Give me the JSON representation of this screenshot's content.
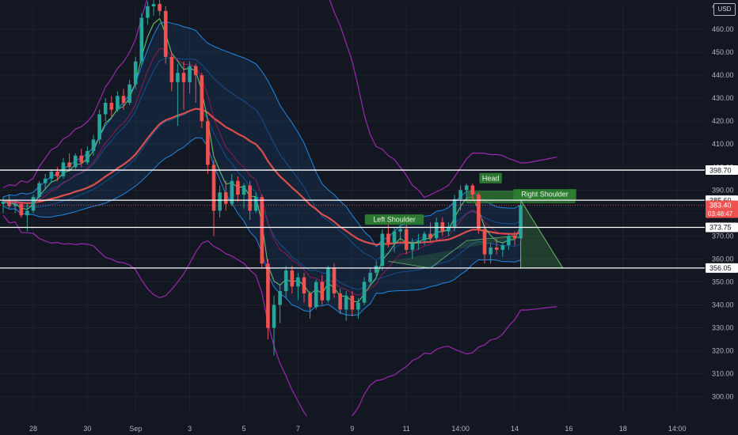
{
  "currency": "USD",
  "chart_data": {
    "type": "candlestick",
    "y_range": [
      293,
      470
    ],
    "y_ticks": [
      "300.00",
      "310.00",
      "320.00",
      "330.00",
      "340.00",
      "350.00",
      "360.00",
      "370.00",
      "380.00",
      "390.00",
      "400.00",
      "410.00",
      "420.00",
      "430.00",
      "440.00",
      "450.00",
      "460.00",
      "470.00"
    ],
    "y_tick_values": [
      300,
      310,
      320,
      330,
      340,
      350,
      360,
      370,
      380,
      390,
      400,
      410,
      420,
      430,
      440,
      450,
      460,
      470
    ],
    "x_ticks": [
      {
        "label": "28",
        "index": 5
      },
      {
        "label": "30",
        "index": 14
      },
      {
        "label": "Sep",
        "index": 22
      },
      {
        "label": "3",
        "index": 31
      },
      {
        "label": "5",
        "index": 40
      },
      {
        "label": "7",
        "index": 49
      },
      {
        "label": "9",
        "index": 58
      },
      {
        "label": "11",
        "index": 67
      },
      {
        "label": "14:00",
        "index": 76
      },
      {
        "label": "14",
        "index": 85
      },
      {
        "label": "16",
        "index": 94
      },
      {
        "label": "18",
        "index": 103
      },
      {
        "label": "14:00",
        "index": 112
      }
    ],
    "candles": [
      {
        "o": 384,
        "h": 387,
        "l": 380,
        "c": 385
      },
      {
        "o": 385,
        "h": 388,
        "l": 382,
        "c": 383
      },
      {
        "o": 383,
        "h": 386,
        "l": 380,
        "c": 384
      },
      {
        "o": 384,
        "h": 385,
        "l": 378,
        "c": 379
      },
      {
        "o": 379,
        "h": 384,
        "l": 372,
        "c": 381
      },
      {
        "o": 381,
        "h": 388,
        "l": 380,
        "c": 387
      },
      {
        "o": 387,
        "h": 394,
        "l": 386,
        "c": 393
      },
      {
        "o": 393,
        "h": 397,
        "l": 390,
        "c": 395
      },
      {
        "o": 395,
        "h": 399,
        "l": 393,
        "c": 398
      },
      {
        "o": 398,
        "h": 400,
        "l": 394,
        "c": 396
      },
      {
        "o": 396,
        "h": 404,
        "l": 395,
        "c": 402
      },
      {
        "o": 402,
        "h": 406,
        "l": 398,
        "c": 400
      },
      {
        "o": 400,
        "h": 406,
        "l": 399,
        "c": 405
      },
      {
        "o": 405,
        "h": 408,
        "l": 400,
        "c": 402
      },
      {
        "o": 402,
        "h": 409,
        "l": 401,
        "c": 407
      },
      {
        "o": 407,
        "h": 414,
        "l": 405,
        "c": 412
      },
      {
        "o": 412,
        "h": 425,
        "l": 410,
        "c": 423
      },
      {
        "o": 423,
        "h": 430,
        "l": 420,
        "c": 428
      },
      {
        "o": 428,
        "h": 431,
        "l": 422,
        "c": 425
      },
      {
        "o": 425,
        "h": 433,
        "l": 424,
        "c": 431
      },
      {
        "o": 431,
        "h": 434,
        "l": 425,
        "c": 428
      },
      {
        "o": 428,
        "h": 438,
        "l": 427,
        "c": 436
      },
      {
        "o": 436,
        "h": 448,
        "l": 434,
        "c": 446
      },
      {
        "o": 446,
        "h": 467,
        "l": 444,
        "c": 465
      },
      {
        "o": 465,
        "h": 472,
        "l": 462,
        "c": 470
      },
      {
        "o": 470,
        "h": 474,
        "l": 466,
        "c": 471
      },
      {
        "o": 471,
        "h": 473,
        "l": 466,
        "c": 468
      },
      {
        "o": 468,
        "h": 470,
        "l": 445,
        "c": 448
      },
      {
        "o": 448,
        "h": 450,
        "l": 433,
        "c": 437
      },
      {
        "o": 437,
        "h": 445,
        "l": 418,
        "c": 441
      },
      {
        "o": 441,
        "h": 446,
        "l": 425,
        "c": 437
      },
      {
        "o": 437,
        "h": 446,
        "l": 432,
        "c": 444
      },
      {
        "o": 444,
        "h": 445,
        "l": 428,
        "c": 440
      },
      {
        "o": 440,
        "h": 441,
        "l": 417,
        "c": 420
      },
      {
        "o": 420,
        "h": 421,
        "l": 397,
        "c": 401
      },
      {
        "o": 401,
        "h": 403,
        "l": 370,
        "c": 381
      },
      {
        "o": 381,
        "h": 392,
        "l": 378,
        "c": 389
      },
      {
        "o": 389,
        "h": 394,
        "l": 381,
        "c": 384
      },
      {
        "o": 384,
        "h": 397,
        "l": 383,
        "c": 394
      },
      {
        "o": 394,
        "h": 396,
        "l": 385,
        "c": 388
      },
      {
        "o": 388,
        "h": 393,
        "l": 382,
        "c": 392
      },
      {
        "o": 392,
        "h": 394,
        "l": 377,
        "c": 381
      },
      {
        "o": 381,
        "h": 389,
        "l": 380,
        "c": 387
      },
      {
        "o": 387,
        "h": 388,
        "l": 356,
        "c": 358
      },
      {
        "o": 358,
        "h": 360,
        "l": 325,
        "c": 330
      },
      {
        "o": 330,
        "h": 344,
        "l": 318,
        "c": 340
      },
      {
        "o": 340,
        "h": 349,
        "l": 332,
        "c": 346
      },
      {
        "o": 346,
        "h": 357,
        "l": 343,
        "c": 355
      },
      {
        "o": 355,
        "h": 357,
        "l": 345,
        "c": 348
      },
      {
        "o": 348,
        "h": 354,
        "l": 342,
        "c": 352
      },
      {
        "o": 352,
        "h": 354,
        "l": 341,
        "c": 345
      },
      {
        "o": 345,
        "h": 346,
        "l": 334,
        "c": 339
      },
      {
        "o": 339,
        "h": 351,
        "l": 338,
        "c": 350
      },
      {
        "o": 350,
        "h": 353,
        "l": 340,
        "c": 342
      },
      {
        "o": 342,
        "h": 357,
        "l": 341,
        "c": 356
      },
      {
        "o": 356,
        "h": 358,
        "l": 343,
        "c": 345
      },
      {
        "o": 345,
        "h": 347,
        "l": 336,
        "c": 338
      },
      {
        "o": 338,
        "h": 346,
        "l": 333,
        "c": 344
      },
      {
        "o": 344,
        "h": 346,
        "l": 335,
        "c": 338
      },
      {
        "o": 338,
        "h": 343,
        "l": 334,
        "c": 341
      },
      {
        "o": 341,
        "h": 352,
        "l": 340,
        "c": 350
      },
      {
        "o": 350,
        "h": 356,
        "l": 349,
        "c": 354
      },
      {
        "o": 354,
        "h": 359,
        "l": 352,
        "c": 357
      },
      {
        "o": 357,
        "h": 373,
        "l": 355,
        "c": 371
      },
      {
        "o": 371,
        "h": 378,
        "l": 365,
        "c": 367
      },
      {
        "o": 367,
        "h": 374,
        "l": 363,
        "c": 372
      },
      {
        "o": 372,
        "h": 376,
        "l": 368,
        "c": 373
      },
      {
        "o": 373,
        "h": 375,
        "l": 362,
        "c": 364
      },
      {
        "o": 364,
        "h": 369,
        "l": 360,
        "c": 367
      },
      {
        "o": 367,
        "h": 371,
        "l": 364,
        "c": 368
      },
      {
        "o": 368,
        "h": 372,
        "l": 366,
        "c": 371
      },
      {
        "o": 371,
        "h": 376,
        "l": 367,
        "c": 369
      },
      {
        "o": 369,
        "h": 378,
        "l": 368,
        "c": 376
      },
      {
        "o": 376,
        "h": 378,
        "l": 370,
        "c": 372
      },
      {
        "o": 372,
        "h": 376,
        "l": 370,
        "c": 374
      },
      {
        "o": 374,
        "h": 388,
        "l": 372,
        "c": 386
      },
      {
        "o": 386,
        "h": 392,
        "l": 381,
        "c": 390
      },
      {
        "o": 390,
        "h": 393,
        "l": 386,
        "c": 392
      },
      {
        "o": 392,
        "h": 393,
        "l": 386,
        "c": 388
      },
      {
        "o": 388,
        "h": 389,
        "l": 371,
        "c": 373
      },
      {
        "o": 373,
        "h": 375,
        "l": 358,
        "c": 362
      },
      {
        "o": 362,
        "h": 367,
        "l": 358,
        "c": 365
      },
      {
        "o": 365,
        "h": 369,
        "l": 362,
        "c": 364
      },
      {
        "o": 364,
        "h": 367,
        "l": 361,
        "c": 366
      },
      {
        "o": 366,
        "h": 371,
        "l": 364,
        "c": 370
      },
      {
        "o": 370,
        "h": 372,
        "l": 366,
        "c": 369
      },
      {
        "o": 369,
        "h": 386,
        "l": 368,
        "c": 383.4
      }
    ],
    "levels": [
      {
        "value": 398.7,
        "label": "398.70",
        "color": "#ffffff"
      },
      {
        "value": 385.6,
        "label": "385.60",
        "color": "#ffffff"
      },
      {
        "value": 373.75,
        "label": "373.75",
        "color": "#ffffff"
      },
      {
        "value": 356.05,
        "label": "356.05",
        "color": "#ffffff"
      }
    ],
    "last_price": {
      "value": 383.4,
      "label": "383.40",
      "countdown": "03:48:47",
      "color": "#ef5350"
    },
    "annotations": [
      {
        "text": "Left Shoulder",
        "index": 65,
        "price": 377.0
      },
      {
        "text": "Head",
        "index": 81,
        "price": 395.0
      },
      {
        "text": "Right Shoulder",
        "index": 90,
        "price": 388.0
      }
    ],
    "neckline_band": {
      "from_index": 77,
      "to_index": 95,
      "top": 389.5,
      "bottom": 384.5
    },
    "triangle": {
      "start_index": 86,
      "end_index": 93,
      "top": 385.6,
      "bottom": 356.05
    }
  }
}
